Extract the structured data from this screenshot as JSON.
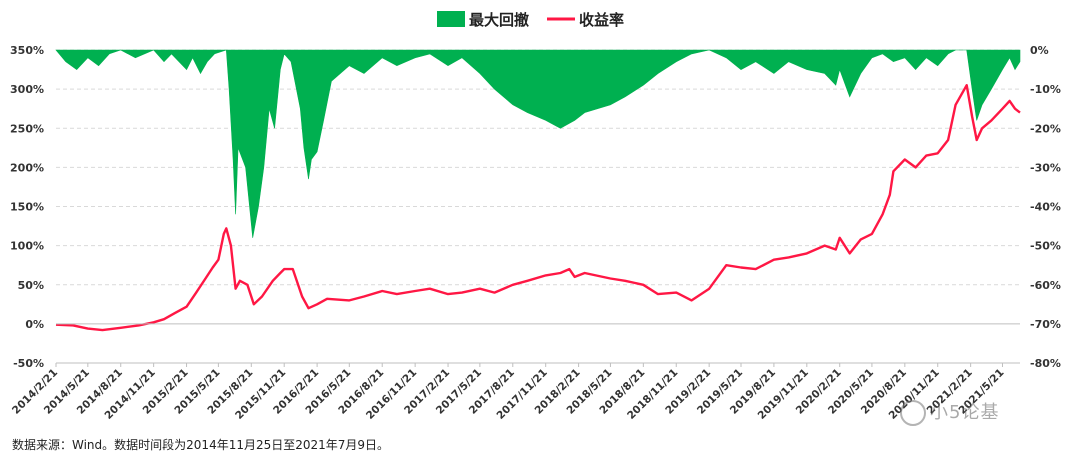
{
  "chart_data": {
    "type": "line+area",
    "legend": [
      {
        "label": "最大回撤",
        "color": "#00b050",
        "kind": "area"
      },
      {
        "label": "收益率",
        "color": "#ff1744",
        "kind": "line"
      }
    ],
    "left_axis": {
      "min": -50,
      "max": 350,
      "ticks": [
        "-50%",
        "0%",
        "50%",
        "100%",
        "150%",
        "200%",
        "250%",
        "300%",
        "350%"
      ],
      "tick_values": [
        -50,
        0,
        50,
        100,
        150,
        200,
        250,
        300,
        350
      ]
    },
    "right_axis": {
      "min": -80,
      "max": 0,
      "ticks": [
        "-80%",
        "-70%",
        "-60%",
        "-50%",
        "-40%",
        "-30%",
        "-20%",
        "-10%",
        "0%"
      ],
      "tick_values": [
        -80,
        -70,
        -60,
        -50,
        -40,
        -30,
        -20,
        -10,
        0
      ]
    },
    "x_tick_labels": [
      "2014/2/21",
      "2014/5/21",
      "2014/8/21",
      "2014/11/21",
      "2015/2/21",
      "2015/5/21",
      "2015/8/21",
      "2015/11/21",
      "2016/2/21",
      "2016/5/21",
      "2016/8/21",
      "2016/11/21",
      "2017/2/21",
      "2017/5/21",
      "2017/8/21",
      "2017/11/21",
      "2018/2/21",
      "2018/5/21",
      "2018/8/21",
      "2018/11/21",
      "2019/2/21",
      "2019/5/21",
      "2019/8/21",
      "2019/11/21",
      "2020/2/21",
      "2020/5/21",
      "2020/8/21",
      "2020/11/21",
      "2021/2/21",
      "2021/5/21"
    ],
    "x_start": "2014/2/21",
    "x_end": "2021/7/9",
    "return_series": {
      "name": "收益率",
      "points": [
        [
          "2014/2/21",
          -1
        ],
        [
          "2014/4/10",
          -2
        ],
        [
          "2014/5/21",
          -6
        ],
        [
          "2014/7/1",
          -8
        ],
        [
          "2014/8/21",
          -5
        ],
        [
          "2014/10/10",
          -2
        ],
        [
          "2014/11/21",
          2
        ],
        [
          "2014/12/20",
          6
        ],
        [
          "2015/1/20",
          14
        ],
        [
          "2015/2/21",
          22
        ],
        [
          "2015/3/20",
          40
        ],
        [
          "2015/4/15",
          58
        ],
        [
          "2015/5/5",
          72
        ],
        [
          "2015/5/21",
          82
        ],
        [
          "2015/6/5",
          115
        ],
        [
          "2015/6/12",
          122
        ],
        [
          "2015/6/25",
          100
        ],
        [
          "2015/7/8",
          45
        ],
        [
          "2015/7/20",
          55
        ],
        [
          "2015/8/10",
          50
        ],
        [
          "2015/8/28",
          25
        ],
        [
          "2015/9/20",
          35
        ],
        [
          "2015/10/20",
          55
        ],
        [
          "2015/11/10",
          65
        ],
        [
          "2015/11/21",
          70
        ],
        [
          "2015/12/15",
          70
        ],
        [
          "2016/1/10",
          35
        ],
        [
          "2016/1/28",
          20
        ],
        [
          "2016/2/21",
          25
        ],
        [
          "2016/3/20",
          32
        ],
        [
          "2016/5/21",
          30
        ],
        [
          "2016/7/1",
          35
        ],
        [
          "2016/8/21",
          42
        ],
        [
          "2016/10/1",
          38
        ],
        [
          "2016/11/21",
          42
        ],
        [
          "2017/1/1",
          45
        ],
        [
          "2017/2/21",
          38
        ],
        [
          "2017/4/1",
          40
        ],
        [
          "2017/5/21",
          45
        ],
        [
          "2017/7/1",
          40
        ],
        [
          "2017/8/21",
          50
        ],
        [
          "2017/10/1",
          55
        ],
        [
          "2017/11/21",
          62
        ],
        [
          "2018/1/1",
          65
        ],
        [
          "2018/1/26",
          70
        ],
        [
          "2018/2/10",
          60
        ],
        [
          "2018/3/10",
          65
        ],
        [
          "2018/5/21",
          58
        ],
        [
          "2018/7/1",
          55
        ],
        [
          "2018/8/21",
          50
        ],
        [
          "2018/10/1",
          38
        ],
        [
          "2018/11/21",
          40
        ],
        [
          "2019/1/3",
          30
        ],
        [
          "2019/2/21",
          45
        ],
        [
          "2019/4/10",
          75
        ],
        [
          "2019/5/21",
          72
        ],
        [
          "2019/7/1",
          70
        ],
        [
          "2019/8/21",
          82
        ],
        [
          "2019/10/1",
          85
        ],
        [
          "2019/11/21",
          90
        ],
        [
          "2020/1/10",
          100
        ],
        [
          "2020/2/10",
          95
        ],
        [
          "2020/2/21",
          110
        ],
        [
          "2020/3/20",
          90
        ],
        [
          "2020/4/20",
          108
        ],
        [
          "2020/5/21",
          115
        ],
        [
          "2020/6/20",
          140
        ],
        [
          "2020/7/10",
          165
        ],
        [
          "2020/7/20",
          195
        ],
        [
          "2020/8/21",
          210
        ],
        [
          "2020/9/20",
          200
        ],
        [
          "2020/10/20",
          215
        ],
        [
          "2020/11/21",
          218
        ],
        [
          "2020/12/20",
          235
        ],
        [
          "2021/1/10",
          280
        ],
        [
          "2021/2/10",
          305
        ],
        [
          "2021/2/25",
          265
        ],
        [
          "2021/3/10",
          235
        ],
        [
          "2021/3/25",
          250
        ],
        [
          "2021/4/20",
          260
        ],
        [
          "2021/5/21",
          275
        ],
        [
          "2021/6/10",
          285
        ],
        [
          "2021/6/25",
          275
        ],
        [
          "2021/7/9",
          270
        ]
      ]
    },
    "drawdown_series": {
      "name": "最大回撤",
      "points": [
        [
          "2014/2/21",
          0
        ],
        [
          "2014/3/20",
          -3
        ],
        [
          "2014/4/20",
          -5
        ],
        [
          "2014/5/21",
          -2
        ],
        [
          "2014/6/20",
          -4
        ],
        [
          "2014/7/20",
          -1
        ],
        [
          "2014/8/21",
          0
        ],
        [
          "2014/10/1",
          -2
        ],
        [
          "2014/11/21",
          0
        ],
        [
          "2014/12/20",
          -3
        ],
        [
          "2015/1/10",
          -1
        ],
        [
          "2015/2/21",
          -5
        ],
        [
          "2015/3/10",
          -2
        ],
        [
          "2015/4/1",
          -6
        ],
        [
          "2015/4/20",
          -3
        ],
        [
          "2015/5/10",
          -1
        ],
        [
          "2015/6/12",
          0
        ],
        [
          "2015/6/20",
          -10
        ],
        [
          "2015/7/1",
          -28
        ],
        [
          "2015/7/8",
          -42
        ],
        [
          "2015/7/15",
          -25
        ],
        [
          "2015/8/5",
          -30
        ],
        [
          "2015/8/25",
          -48
        ],
        [
          "2015/9/10",
          -40
        ],
        [
          "2015/9/25",
          -30
        ],
        [
          "2015/10/10",
          -15
        ],
        [
          "2015/10/25",
          -20
        ],
        [
          "2015/11/10",
          -5
        ],
        [
          "2015/11/21",
          -1
        ],
        [
          "2015/12/10",
          -3
        ],
        [
          "2016/1/5",
          -15
        ],
        [
          "2016/1/15",
          -25
        ],
        [
          "2016/1/28",
          -33
        ],
        [
          "2016/2/5",
          -28
        ],
        [
          "2016/2/21",
          -26
        ],
        [
          "2016/3/10",
          -18
        ],
        [
          "2016/4/1",
          -8
        ],
        [
          "2016/5/21",
          -4
        ],
        [
          "2016/7/1",
          -6
        ],
        [
          "2016/8/21",
          -2
        ],
        [
          "2016/10/1",
          -4
        ],
        [
          "2016/11/21",
          -2
        ],
        [
          "2017/1/1",
          -1
        ],
        [
          "2017/2/21",
          -4
        ],
        [
          "2017/4/1",
          -2
        ],
        [
          "2017/5/21",
          -6
        ],
        [
          "2017/7/1",
          -10
        ],
        [
          "2017/8/21",
          -14
        ],
        [
          "2017/10/1",
          -16
        ],
        [
          "2017/11/21",
          -18
        ],
        [
          "2018/1/1",
          -20
        ],
        [
          "2018/2/10",
          -18
        ],
        [
          "2018/3/10",
          -16
        ],
        [
          "2018/5/21",
          -14
        ],
        [
          "2018/7/1",
          -12
        ],
        [
          "2018/8/21",
          -9
        ],
        [
          "2018/10/1",
          -6
        ],
        [
          "2018/11/21",
          -3
        ],
        [
          "2019/1/3",
          -1
        ],
        [
          "2019/2/21",
          0
        ],
        [
          "2019/4/10",
          -2
        ],
        [
          "2019/5/21",
          -5
        ],
        [
          "2019/7/1",
          -3
        ],
        [
          "2019/8/21",
          -6
        ],
        [
          "2019/10/1",
          -3
        ],
        [
          "2019/11/21",
          -5
        ],
        [
          "2020/1/10",
          -6
        ],
        [
          "2020/2/10",
          -9
        ],
        [
          "2020/2/21",
          -5
        ],
        [
          "2020/3/20",
          -12
        ],
        [
          "2020/4/20",
          -6
        ],
        [
          "2020/5/21",
          -2
        ],
        [
          "2020/6/20",
          -1
        ],
        [
          "2020/7/20",
          -3
        ],
        [
          "2020/8/21",
          -2
        ],
        [
          "2020/9/20",
          -5
        ],
        [
          "2020/10/20",
          -2
        ],
        [
          "2020/11/21",
          -4
        ],
        [
          "2020/12/20",
          -1
        ],
        [
          "2021/1/10",
          0
        ],
        [
          "2021/2/10",
          0
        ],
        [
          "2021/2/25",
          -10
        ],
        [
          "2021/3/10",
          -18
        ],
        [
          "2021/3/25",
          -14
        ],
        [
          "2021/4/20",
          -10
        ],
        [
          "2021/5/21",
          -5
        ],
        [
          "2021/6/10",
          -2
        ],
        [
          "2021/6/25",
          -5
        ],
        [
          "2021/7/9",
          -3
        ]
      ]
    }
  },
  "source_note": "数据来源：Wind。数据时间段为2014年11月25日至2021年7月9日。",
  "watermark_text": "小5论基"
}
